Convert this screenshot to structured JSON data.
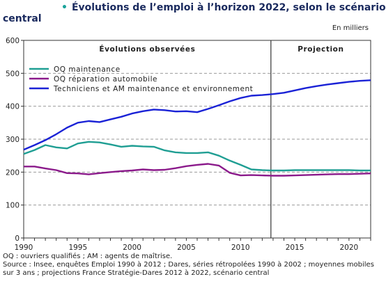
{
  "title_line1": "Évolutions de l’emploi à l’horizon 2022, selon le scénario",
  "title_line2": "central",
  "units": "En milliers",
  "section_observed": "Évolutions observées",
  "section_projection": "Projection",
  "notes": {
    "line1": "OQ : ouvriers qualifiés ; AM : agents de maîtrise.",
    "line2": "Source : Insee, enquêtes Emploi 1990 à 2012 ; Dares, séries rétropolées 1990 à 2002 ; moyennes mobiles sur 3 ans ; projections France Stratégie-Dares 2012 à 2022, scénario central"
  },
  "colors": {
    "teal": "#1f9e93",
    "purple": "#8b1a8b",
    "blue": "#1a22d6"
  },
  "chart_data": {
    "type": "line",
    "ylim": [
      0,
      600
    ],
    "yticks": [
      0,
      100,
      200,
      300,
      400,
      500,
      600
    ],
    "xlim": [
      1990,
      2022
    ],
    "xticks": [
      1990,
      1995,
      2000,
      2005,
      2010,
      2015,
      2020
    ],
    "projection_start": 2012.8,
    "grid": true,
    "legend_position": "top-left",
    "series": [
      {
        "name": "OQ  maintenance",
        "color": "#1f9e93",
        "x": [
          1990,
          1991,
          1992,
          1993,
          1994,
          1995,
          1996,
          1997,
          1998,
          1999,
          2000,
          2001,
          2002,
          2003,
          2004,
          2005,
          2006,
          2007,
          2008,
          2009,
          2010,
          2011,
          2012,
          2013,
          2014,
          2015,
          2016,
          2017,
          2018,
          2019,
          2020,
          2021,
          2022
        ],
        "y": [
          255,
          267,
          282,
          275,
          272,
          287,
          292,
          290,
          284,
          277,
          280,
          278,
          277,
          266,
          260,
          258,
          258,
          260,
          250,
          235,
          222,
          208,
          206,
          205,
          205,
          206,
          206,
          206,
          206,
          206,
          206,
          205,
          205
        ]
      },
      {
        "name": "OQ  réparation automobile",
        "color": "#8b1a8b",
        "x": [
          1990,
          1991,
          1992,
          1993,
          1994,
          1995,
          1996,
          1997,
          1998,
          1999,
          2000,
          2001,
          2002,
          2003,
          2004,
          2005,
          2006,
          2007,
          2008,
          2009,
          2010,
          2011,
          2012,
          2013,
          2014,
          2015,
          2016,
          2017,
          2018,
          2019,
          2020,
          2021,
          2022
        ],
        "y": [
          217,
          217,
          211,
          206,
          197,
          196,
          193,
          197,
          200,
          203,
          205,
          208,
          206,
          207,
          212,
          218,
          222,
          225,
          220,
          198,
          190,
          191,
          190,
          189,
          189,
          190,
          191,
          192,
          193,
          194,
          194,
          195,
          196
        ]
      },
      {
        "name": "Techniciens et AM maintenance et environnement",
        "color": "#1a22d6",
        "x": [
          1990,
          1991,
          1992,
          1993,
          1994,
          1995,
          1996,
          1997,
          1998,
          1999,
          2000,
          2001,
          2002,
          2003,
          2004,
          2005,
          2006,
          2007,
          2008,
          2009,
          2010,
          2011,
          2012,
          2013,
          2014,
          2015,
          2016,
          2017,
          2018,
          2019,
          2020,
          2021,
          2022
        ],
        "y": [
          268,
          282,
          297,
          315,
          335,
          350,
          355,
          352,
          360,
          368,
          378,
          385,
          390,
          388,
          384,
          385,
          382,
          392,
          403,
          415,
          425,
          432,
          434,
          437,
          441,
          448,
          455,
          461,
          466,
          470,
          474,
          477,
          479
        ]
      }
    ]
  }
}
